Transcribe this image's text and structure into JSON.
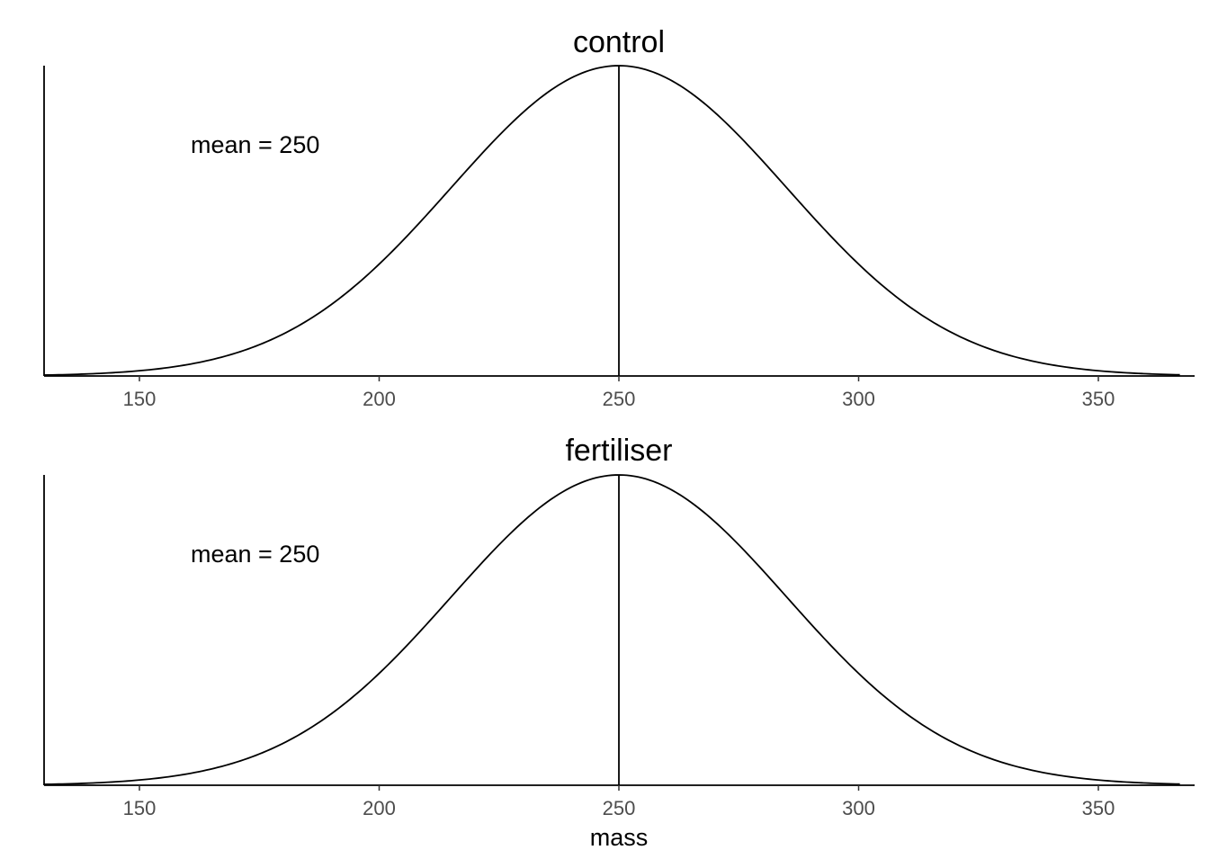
{
  "chart_data": [
    {
      "type": "line",
      "title": "control",
      "xlabel": "",
      "ylabel": "",
      "xlim": [
        130,
        367
      ],
      "x_ticks": [
        150,
        200,
        250,
        300,
        350
      ],
      "distribution": {
        "kind": "normal",
        "mean": 250,
        "sd": 35
      },
      "mean_line": 250,
      "annotation": "mean = 250",
      "y_axis_ticks": false,
      "grid": false
    },
    {
      "type": "line",
      "title": "fertiliser",
      "xlabel": "mass",
      "ylabel": "",
      "xlim": [
        130,
        367
      ],
      "x_ticks": [
        150,
        200,
        250,
        300,
        350
      ],
      "distribution": {
        "kind": "normal",
        "mean": 250,
        "sd": 35
      },
      "mean_line": 250,
      "annotation": "mean = 250",
      "y_axis_ticks": false,
      "grid": false
    }
  ]
}
